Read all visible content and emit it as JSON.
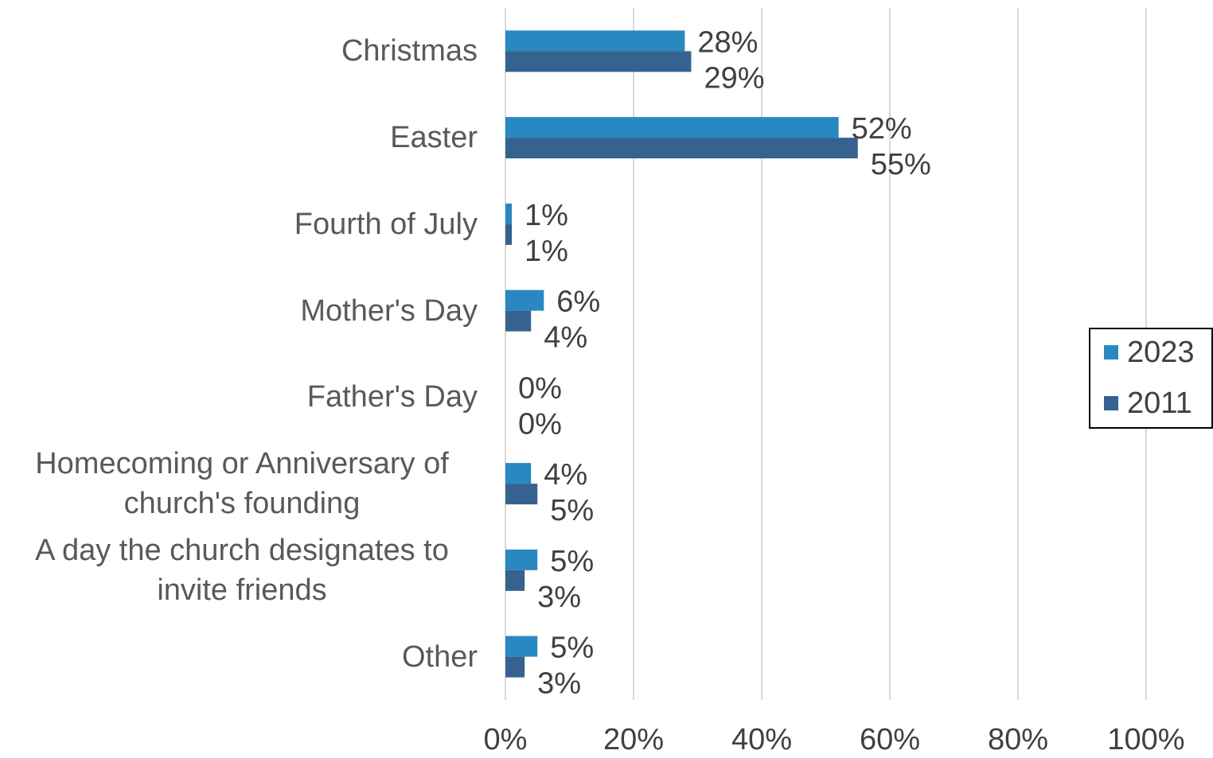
{
  "chart_data": {
    "type": "bar",
    "orientation": "horizontal",
    "categories": [
      "Christmas",
      "Easter",
      "Fourth of July",
      "Mother's Day",
      "Father's Day",
      "Homecoming or Anniversary of church's founding",
      "A day the church designates to invite friends",
      "Other"
    ],
    "series": [
      {
        "name": "2023",
        "color": "#2a88c0",
        "values": [
          28,
          52,
          1,
          6,
          0,
          4,
          5,
          5
        ],
        "value_labels": [
          "28%",
          "52%",
          "1%",
          "6%",
          "0%",
          "4%",
          "5%",
          "5%"
        ]
      },
      {
        "name": "2011",
        "color": "#35628f",
        "values": [
          29,
          55,
          1,
          4,
          0,
          5,
          3,
          3
        ],
        "value_labels": [
          "29%",
          "55%",
          "1%",
          "4%",
          "0%",
          "5%",
          "3%",
          "3%"
        ]
      }
    ],
    "xlim": [
      0,
      100
    ],
    "xticks": [
      {
        "value": 0,
        "label": "0%"
      },
      {
        "value": 20,
        "label": "20%"
      },
      {
        "value": 40,
        "label": "40%"
      },
      {
        "value": 60,
        "label": "60%"
      },
      {
        "value": 80,
        "label": "80%"
      },
      {
        "value": 100,
        "label": "100%"
      }
    ],
    "grid": true,
    "legend": "right"
  }
}
